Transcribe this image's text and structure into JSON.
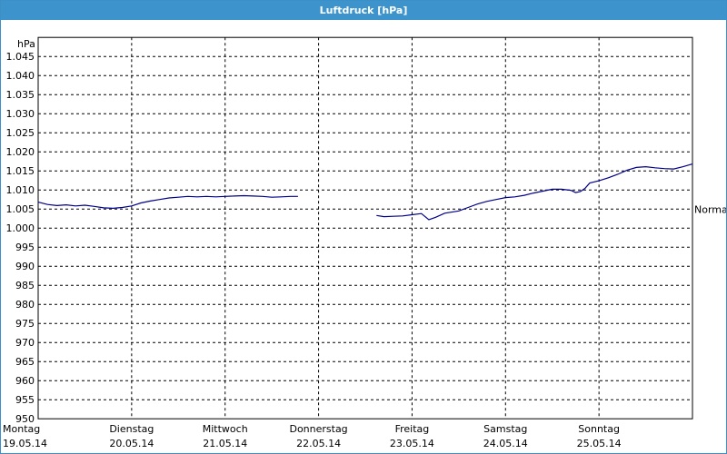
{
  "window": {
    "title": "Luftdruck [hPa]"
  },
  "chart_data": {
    "type": "line",
    "title": "Luftdruck [hPa]",
    "ylabel": "hPa",
    "ylim": [
      950,
      1050
    ],
    "yticks": [
      950,
      955,
      960,
      965,
      970,
      975,
      980,
      985,
      990,
      995,
      1000,
      1005,
      1010,
      1015,
      1020,
      1025,
      1030,
      1035,
      1040,
      1045
    ],
    "ytick_labels": [
      "950",
      "955",
      "960",
      "965",
      "970",
      "975",
      "980",
      "985",
      "990",
      "995",
      "1.000",
      "1.005",
      "1.010",
      "1.015",
      "1.020",
      "1.025",
      "1.030",
      "1.035",
      "1.040",
      "1.045"
    ],
    "xlim": [
      0,
      7
    ],
    "x_categories": [
      {
        "day": "Montag",
        "date": "19.05.14"
      },
      {
        "day": "Dienstag",
        "date": "20.05.14"
      },
      {
        "day": "Mittwoch",
        "date": "21.05.14"
      },
      {
        "day": "Donnerstag",
        "date": "22.05.14"
      },
      {
        "day": "Freitag",
        "date": "23.05.14"
      },
      {
        "day": "Samstag",
        "date": "24.05.14"
      },
      {
        "day": "Sonntag",
        "date": "25.05.14"
      }
    ],
    "grid": true,
    "reference_line": {
      "label": "Normal",
      "value": 1004.9
    },
    "series": [
      {
        "color": "#00008b",
        "segments": [
          [
            [
              0.0,
              1006.8
            ],
            [
              0.1,
              1006.2
            ],
            [
              0.2,
              1005.9
            ],
            [
              0.3,
              1006.1
            ],
            [
              0.4,
              1005.8
            ],
            [
              0.5,
              1006.0
            ],
            [
              0.6,
              1005.7
            ],
            [
              0.7,
              1005.3
            ],
            [
              0.8,
              1005.2
            ],
            [
              0.9,
              1005.4
            ],
            [
              1.0,
              1005.8
            ],
            [
              1.1,
              1006.6
            ],
            [
              1.2,
              1007.1
            ],
            [
              1.3,
              1007.5
            ],
            [
              1.4,
              1007.9
            ],
            [
              1.5,
              1008.1
            ],
            [
              1.6,
              1008.3
            ],
            [
              1.7,
              1008.2
            ],
            [
              1.8,
              1008.3
            ],
            [
              1.9,
              1008.2
            ],
            [
              2.0,
              1008.3
            ],
            [
              2.1,
              1008.4
            ],
            [
              2.2,
              1008.5
            ],
            [
              2.3,
              1008.4
            ],
            [
              2.4,
              1008.3
            ],
            [
              2.5,
              1008.1
            ],
            [
              2.6,
              1008.2
            ],
            [
              2.7,
              1008.3
            ],
            [
              2.78,
              1008.3
            ]
          ],
          [
            [
              3.62,
              1003.3
            ],
            [
              3.7,
              1003.0
            ],
            [
              3.8,
              1003.1
            ],
            [
              3.9,
              1003.2
            ],
            [
              4.0,
              1003.5
            ],
            [
              4.1,
              1003.8
            ],
            [
              4.18,
              1002.2
            ],
            [
              4.25,
              1002.8
            ],
            [
              4.35,
              1003.9
            ],
            [
              4.5,
              1004.5
            ],
            [
              4.6,
              1005.4
            ],
            [
              4.7,
              1006.3
            ],
            [
              4.8,
              1007.0
            ],
            [
              4.9,
              1007.5
            ],
            [
              5.0,
              1008.0
            ],
            [
              5.1,
              1008.2
            ],
            [
              5.2,
              1008.6
            ],
            [
              5.3,
              1009.2
            ],
            [
              5.4,
              1009.7
            ],
            [
              5.5,
              1010.2
            ],
            [
              5.6,
              1010.2
            ],
            [
              5.7,
              1009.9
            ],
            [
              5.75,
              1009.3
            ],
            [
              5.8,
              1009.6
            ],
            [
              5.85,
              1010.4
            ],
            [
              5.9,
              1011.8
            ],
            [
              6.0,
              1012.4
            ],
            [
              6.1,
              1013.2
            ],
            [
              6.2,
              1014.1
            ],
            [
              6.3,
              1015.2
            ],
            [
              6.4,
              1015.9
            ],
            [
              6.5,
              1016.1
            ],
            [
              6.6,
              1015.8
            ],
            [
              6.7,
              1015.6
            ],
            [
              6.8,
              1015.5
            ],
            [
              6.9,
              1016.1
            ],
            [
              7.0,
              1016.8
            ]
          ]
        ]
      }
    ]
  }
}
